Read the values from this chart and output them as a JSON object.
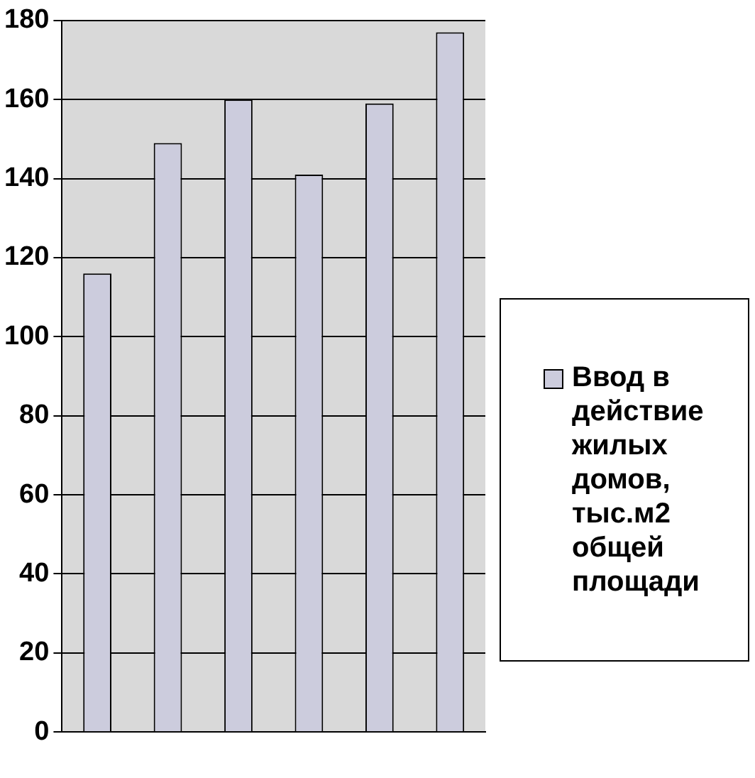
{
  "chart_data": {
    "type": "bar",
    "categories": [
      null,
      null,
      null,
      null,
      null,
      null
    ],
    "series": [
      {
        "name": "Ввод в действие жилых домов, тыс.м2 общей площади",
        "color": "#ccccdd",
        "values": [
          116,
          149,
          160,
          141,
          159,
          177
        ]
      }
    ],
    "ylim": [
      0,
      180
    ],
    "yticks": [
      0,
      20,
      40,
      60,
      80,
      100,
      120,
      140,
      160,
      180
    ],
    "grid": "y",
    "legend": "right"
  }
}
